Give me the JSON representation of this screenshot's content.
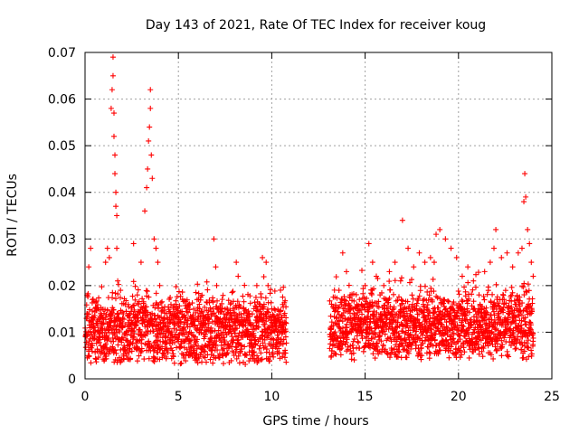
{
  "chart_data": {
    "type": "scatter",
    "title": "Day 143 of 2021, Rate Of TEC Index for receiver koug",
    "xlabel": "GPS time / hours",
    "ylabel": "ROTI / TECUs",
    "xlim": [
      0,
      25
    ],
    "ylim": [
      0,
      0.07
    ],
    "xticks": [
      0,
      5,
      10,
      15,
      20,
      25
    ],
    "xtick_labels": [
      "0",
      "5",
      "10",
      "15",
      "20",
      "25"
    ],
    "yticks": [
      0,
      0.01,
      0.02,
      0.03,
      0.04,
      0.05,
      0.06,
      0.07
    ],
    "ytick_labels": [
      "0",
      "0.01",
      "0.02",
      "0.03",
      "0.04",
      "0.05",
      "0.06",
      "0.07"
    ],
    "grid": true,
    "marker": "plus",
    "color": "#ff0000",
    "data_gaps_hours": [
      [
        10.8,
        13.1
      ]
    ],
    "series": [
      {
        "name": "ROTI",
        "x": [
          0.05,
          0.2,
          0.3,
          0.4,
          0.5,
          0.6,
          0.8,
          1.0,
          1.1,
          1.2,
          1.3,
          1.4,
          1.45,
          1.5,
          1.5,
          1.55,
          1.55,
          1.6,
          1.6,
          1.65,
          1.65,
          1.7,
          1.7,
          1.75,
          1.8,
          1.9,
          2.0,
          2.2,
          2.4,
          2.6,
          2.8,
          3.0,
          3.2,
          3.3,
          3.35,
          3.4,
          3.45,
          3.5,
          3.5,
          3.55,
          3.6,
          3.7,
          3.8,
          3.9,
          4.0,
          4.2,
          4.5,
          4.8,
          5.0,
          5.3,
          5.6,
          6.0,
          6.3,
          6.6,
          6.9,
          7.0,
          7.05,
          7.1,
          7.4,
          7.7,
          8.0,
          8.1,
          8.2,
          8.5,
          8.8,
          9.2,
          9.5,
          9.7,
          9.8,
          10.0,
          10.2,
          10.4,
          10.6,
          10.75,
          13.2,
          13.4,
          13.6,
          13.8,
          14.0,
          14.2,
          14.4,
          14.6,
          14.8,
          15.0,
          15.2,
          15.4,
          15.6,
          15.8,
          16.0,
          16.3,
          16.6,
          16.9,
          17.0,
          17.3,
          17.6,
          17.9,
          18.2,
          18.5,
          18.7,
          18.8,
          19.0,
          19.3,
          19.6,
          19.9,
          20.2,
          20.5,
          20.8,
          21.1,
          21.4,
          21.7,
          21.9,
          22.0,
          22.3,
          22.6,
          22.9,
          23.2,
          23.4,
          23.5,
          23.55,
          23.6,
          23.7,
          23.8,
          23.9,
          24.0
        ],
        "y": [
          0.009,
          0.024,
          0.028,
          0.017,
          0.011,
          0.015,
          0.013,
          0.012,
          0.025,
          0.028,
          0.026,
          0.058,
          0.062,
          0.069,
          0.065,
          0.057,
          0.052,
          0.048,
          0.044,
          0.04,
          0.037,
          0.035,
          0.028,
          0.021,
          0.013,
          0.019,
          0.012,
          0.01,
          0.014,
          0.029,
          0.018,
          0.025,
          0.036,
          0.041,
          0.045,
          0.051,
          0.054,
          0.058,
          0.062,
          0.048,
          0.043,
          0.03,
          0.028,
          0.025,
          0.02,
          0.012,
          0.01,
          0.009,
          0.013,
          0.011,
          0.01,
          0.017,
          0.012,
          0.011,
          0.03,
          0.024,
          0.02,
          0.013,
          0.01,
          0.01,
          0.014,
          0.025,
          0.022,
          0.015,
          0.012,
          0.02,
          0.026,
          0.025,
          0.02,
          0.015,
          0.013,
          0.012,
          0.01,
          0.009,
          0.016,
          0.012,
          0.019,
          0.027,
          0.023,
          0.018,
          0.014,
          0.015,
          0.016,
          0.02,
          0.029,
          0.025,
          0.022,
          0.018,
          0.02,
          0.023,
          0.025,
          0.021,
          0.034,
          0.028,
          0.024,
          0.027,
          0.025,
          0.026,
          0.025,
          0.031,
          0.032,
          0.03,
          0.028,
          0.026,
          0.022,
          0.024,
          0.021,
          0.018,
          0.023,
          0.025,
          0.028,
          0.032,
          0.026,
          0.027,
          0.024,
          0.027,
          0.028,
          0.038,
          0.044,
          0.039,
          0.032,
          0.029,
          0.025,
          0.022
        ]
      }
    ]
  }
}
